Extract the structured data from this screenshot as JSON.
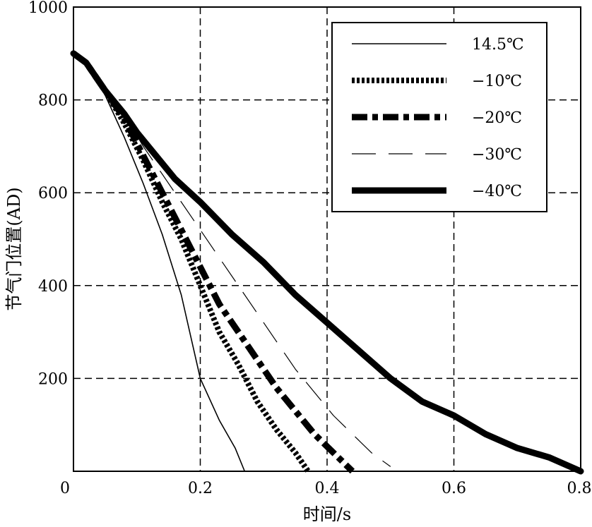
{
  "chart_data": {
    "type": "line",
    "title": "",
    "xlabel": "时间/s",
    "ylabel": "节气门位置(AD)",
    "xlim": [
      0,
      0.8
    ],
    "ylim": [
      0,
      1000
    ],
    "xticks": [
      "0",
      "0.2",
      "0.4",
      "0.6",
      "0.8"
    ],
    "yticks": [
      "200",
      "400",
      "600",
      "800",
      "1000"
    ],
    "grid": true,
    "legend_position": "top-right",
    "series": [
      {
        "name": "14.5℃",
        "style": "solid-thin",
        "points": [
          [
            0,
            900
          ],
          [
            0.02,
            880
          ],
          [
            0.05,
            810
          ],
          [
            0.08,
            720
          ],
          [
            0.11,
            620
          ],
          [
            0.14,
            510
          ],
          [
            0.17,
            380
          ],
          [
            0.2,
            200
          ],
          [
            0.23,
            110
          ],
          [
            0.255,
            50
          ],
          [
            0.27,
            0
          ]
        ]
      },
      {
        "name": "−10℃",
        "style": "dotted-thick",
        "points": [
          [
            0,
            900
          ],
          [
            0.02,
            880
          ],
          [
            0.05,
            820
          ],
          [
            0.08,
            750
          ],
          [
            0.11,
            670
          ],
          [
            0.14,
            580
          ],
          [
            0.17,
            500
          ],
          [
            0.2,
            400
          ],
          [
            0.23,
            300
          ],
          [
            0.26,
            230
          ],
          [
            0.29,
            150
          ],
          [
            0.32,
            90
          ],
          [
            0.35,
            40
          ],
          [
            0.37,
            0
          ]
        ]
      },
      {
        "name": "−20℃",
        "style": "dashdot-thick",
        "points": [
          [
            0,
            900
          ],
          [
            0.02,
            880
          ],
          [
            0.05,
            820
          ],
          [
            0.08,
            760
          ],
          [
            0.11,
            680
          ],
          [
            0.14,
            600
          ],
          [
            0.17,
            520
          ],
          [
            0.2,
            440
          ],
          [
            0.23,
            360
          ],
          [
            0.26,
            300
          ],
          [
            0.29,
            240
          ],
          [
            0.32,
            180
          ],
          [
            0.35,
            130
          ],
          [
            0.38,
            80
          ],
          [
            0.41,
            40
          ],
          [
            0.44,
            0
          ]
        ]
      },
      {
        "name": "−30℃",
        "style": "dashed-thin",
        "points": [
          [
            0,
            900
          ],
          [
            0.02,
            880
          ],
          [
            0.05,
            830
          ],
          [
            0.08,
            770
          ],
          [
            0.11,
            700
          ],
          [
            0.14,
            640
          ],
          [
            0.17,
            580
          ],
          [
            0.2,
            520
          ],
          [
            0.23,
            460
          ],
          [
            0.26,
            400
          ],
          [
            0.29,
            340
          ],
          [
            0.32,
            280
          ],
          [
            0.35,
            220
          ],
          [
            0.38,
            170
          ],
          [
            0.41,
            120
          ],
          [
            0.44,
            80
          ],
          [
            0.47,
            40
          ],
          [
            0.5,
            10
          ]
        ]
      },
      {
        "name": "−40℃",
        "style": "solid-thick",
        "points": [
          [
            0,
            900
          ],
          [
            0.02,
            880
          ],
          [
            0.05,
            820
          ],
          [
            0.08,
            770
          ],
          [
            0.1,
            730
          ],
          [
            0.13,
            680
          ],
          [
            0.16,
            630
          ],
          [
            0.2,
            580
          ],
          [
            0.25,
            510
          ],
          [
            0.3,
            450
          ],
          [
            0.35,
            380
          ],
          [
            0.4,
            320
          ],
          [
            0.45,
            260
          ],
          [
            0.5,
            200
          ],
          [
            0.55,
            150
          ],
          [
            0.6,
            120
          ],
          [
            0.65,
            80
          ],
          [
            0.7,
            50
          ],
          [
            0.75,
            30
          ],
          [
            0.8,
            0
          ]
        ]
      }
    ]
  }
}
